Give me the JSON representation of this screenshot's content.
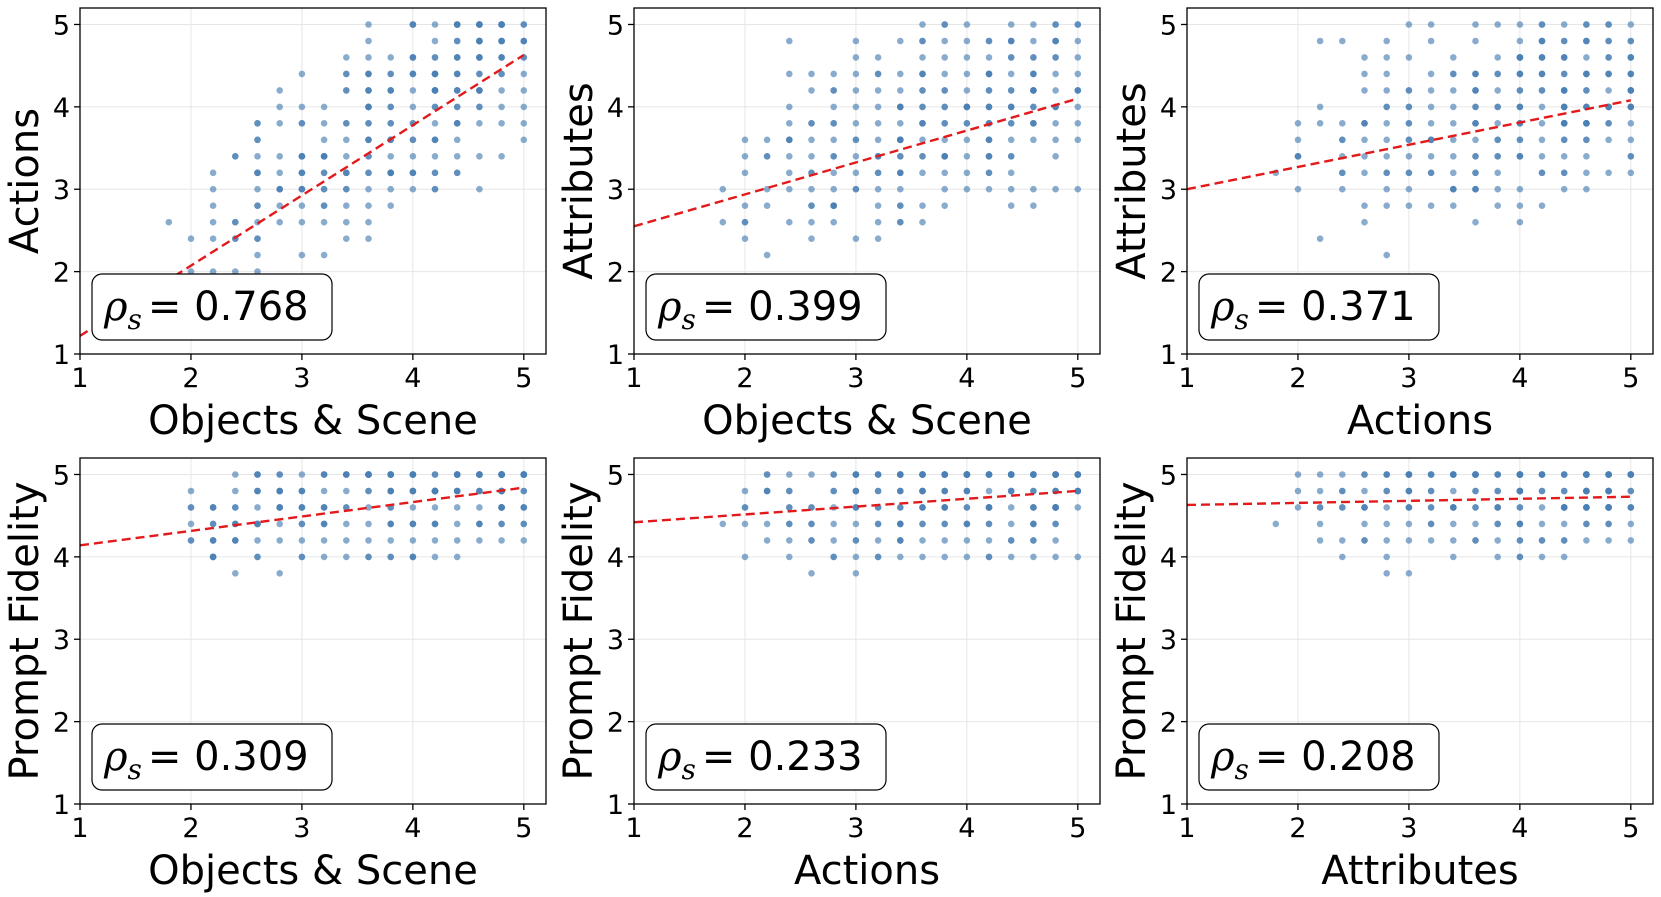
{
  "chart_data": [
    {
      "type": "scatter",
      "xlabel": "Objects & Scene",
      "ylabel": "Actions",
      "xlim": [
        1,
        5.2
      ],
      "ylim": [
        1,
        5.2
      ],
      "xticks": [
        "1",
        "2",
        "3",
        "4",
        "5"
      ],
      "yticks": [
        "1",
        "2",
        "3",
        "4",
        "5"
      ],
      "rho_label": "ρ",
      "rho_sub": "s",
      "rho_value": "= 0.768",
      "rho": 0.768,
      "trend": {
        "x": [
          1,
          5
        ],
        "y": [
          1.22,
          4.63
        ]
      },
      "marker_color": "#4a80b4",
      "trend_color": "#e31a1c"
    },
    {
      "type": "scatter",
      "xlabel": "Objects & Scene",
      "ylabel": "Attributes",
      "xlim": [
        1,
        5.2
      ],
      "ylim": [
        1,
        5.2
      ],
      "xticks": [
        "1",
        "2",
        "3",
        "4",
        "5"
      ],
      "yticks": [
        "1",
        "2",
        "3",
        "4",
        "5"
      ],
      "rho_label": "ρ",
      "rho_sub": "s",
      "rho_value": "= 0.399",
      "rho": 0.399,
      "trend": {
        "x": [
          1,
          5
        ],
        "y": [
          2.55,
          4.1
        ]
      },
      "marker_color": "#4a80b4",
      "trend_color": "#e31a1c"
    },
    {
      "type": "scatter",
      "xlabel": "Actions",
      "ylabel": "Attributes",
      "xlim": [
        1,
        5.2
      ],
      "ylim": [
        1,
        5.2
      ],
      "xticks": [
        "1",
        "2",
        "3",
        "4",
        "5"
      ],
      "yticks": [
        "1",
        "2",
        "3",
        "4",
        "5"
      ],
      "rho_label": "ρ",
      "rho_sub": "s",
      "rho_value": "= 0.371",
      "rho": 0.371,
      "trend": {
        "x": [
          1,
          5
        ],
        "y": [
          3.0,
          4.08
        ]
      },
      "marker_color": "#4a80b4",
      "trend_color": "#e31a1c"
    },
    {
      "type": "scatter",
      "xlabel": "Objects & Scene",
      "ylabel": "Prompt Fidelity",
      "xlim": [
        1,
        5.2
      ],
      "ylim": [
        1,
        5.2
      ],
      "xticks": [
        "1",
        "2",
        "3",
        "4",
        "5"
      ],
      "yticks": [
        "1",
        "2",
        "3",
        "4",
        "5"
      ],
      "rho_label": "ρ",
      "rho_sub": "s",
      "rho_value": "= 0.309",
      "rho": 0.309,
      "trend": {
        "x": [
          1,
          5
        ],
        "y": [
          4.14,
          4.84
        ]
      },
      "marker_color": "#4a80b4",
      "trend_color": "#e31a1c"
    },
    {
      "type": "scatter",
      "xlabel": "Actions",
      "ylabel": "Prompt Fidelity",
      "xlim": [
        1,
        5.2
      ],
      "ylim": [
        1,
        5.2
      ],
      "xticks": [
        "1",
        "2",
        "3",
        "4",
        "5"
      ],
      "yticks": [
        "1",
        "2",
        "3",
        "4",
        "5"
      ],
      "rho_label": "ρ",
      "rho_sub": "s",
      "rho_value": "= 0.233",
      "rho": 0.233,
      "trend": {
        "x": [
          1,
          5
        ],
        "y": [
          4.42,
          4.8
        ]
      },
      "marker_color": "#4a80b4",
      "trend_color": "#e31a1c"
    },
    {
      "type": "scatter",
      "xlabel": "Attributes",
      "ylabel": "Prompt Fidelity",
      "xlim": [
        1,
        5.2
      ],
      "ylim": [
        1,
        5.2
      ],
      "xticks": [
        "1",
        "2",
        "3",
        "4",
        "5"
      ],
      "yticks": [
        "1",
        "2",
        "3",
        "4",
        "5"
      ],
      "rho_label": "ρ",
      "rho_sub": "s",
      "rho_value": "= 0.208",
      "rho": 0.208,
      "trend": {
        "x": [
          1,
          5
        ],
        "y": [
          4.63,
          4.73
        ]
      },
      "marker_color": "#4a80b4",
      "trend_color": "#e31a1c"
    }
  ]
}
